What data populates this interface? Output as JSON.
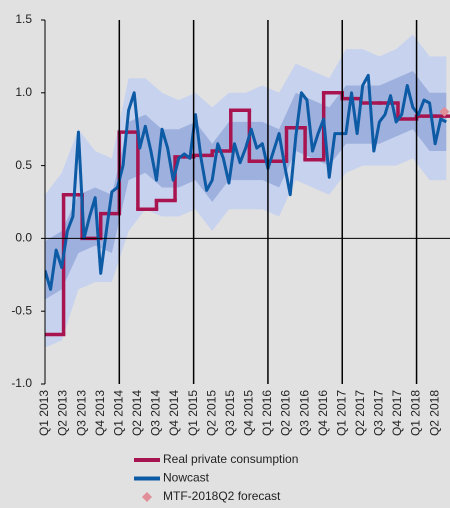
{
  "chart_data": {
    "type": "line",
    "xlim": [
      0,
      21.8
    ],
    "xticks": [
      {
        "value": 0,
        "label": "Q1 2013"
      },
      {
        "value": 1,
        "label": "Q2 2013"
      },
      {
        "value": 2,
        "label": "Q3 2013"
      },
      {
        "value": 3,
        "label": "Q4 2013"
      },
      {
        "value": 4,
        "label": "Q1 2014"
      },
      {
        "value": 5,
        "label": "Q2 2014"
      },
      {
        "value": 6,
        "label": "Q3 2014"
      },
      {
        "value": 7,
        "label": "Q4 2014"
      },
      {
        "value": 8,
        "label": "Q1 2015"
      },
      {
        "value": 9,
        "label": "Q2 2015"
      },
      {
        "value": 10,
        "label": "Q3 2015"
      },
      {
        "value": 11,
        "label": "Q4 2015"
      },
      {
        "value": 12,
        "label": "Q1 2016"
      },
      {
        "value": 13,
        "label": "Q2 2016"
      },
      {
        "value": 14,
        "label": "Q3 2016"
      },
      {
        "value": 15,
        "label": "Q4 2016"
      },
      {
        "value": 16,
        "label": "Q1 2017"
      },
      {
        "value": 17,
        "label": "Q2 2017"
      },
      {
        "value": 18,
        "label": "Q3 2017"
      },
      {
        "value": 19,
        "label": "Q4 2017"
      },
      {
        "value": 20,
        "label": "Q1 2018"
      },
      {
        "value": 21,
        "label": "Q2 2018"
      }
    ],
    "ylim": [
      -1,
      1.5
    ],
    "yticks": [
      {
        "value": -1,
        "label": "-1.0"
      },
      -0.5,
      {
        "value": 0,
        "label": "0.0"
      },
      0.5,
      {
        "value": 1,
        "label": "1.0"
      },
      1.5
    ],
    "bands": [
      {
        "color": "#c7d2ee",
        "x": [
          0,
          0.9,
          1.8,
          2.7,
          3.6,
          4.5,
          5.4,
          6.3,
          7.2,
          8.1,
          9,
          9.9,
          10.8,
          11.7,
          12.6,
          13.5,
          14.4,
          15.3,
          16.2,
          17.1,
          18,
          18.9,
          19.8,
          20.7,
          21.6
        ],
        "lower": [
          -0.75,
          -0.7,
          -0.35,
          -0.3,
          -0.3,
          0.05,
          0.2,
          0.15,
          0.15,
          0.2,
          0.05,
          0.2,
          0.2,
          0.2,
          0.15,
          0.4,
          0.35,
          0.3,
          0.45,
          0.5,
          0.5,
          0.5,
          0.55,
          0.4,
          0.4
        ],
        "upper": [
          0.3,
          0.45,
          0.75,
          0.6,
          0.55,
          1.1,
          1.1,
          1.0,
          0.95,
          1.0,
          0.9,
          1.0,
          1.0,
          1.05,
          1.0,
          1.2,
          1.15,
          1.1,
          1.3,
          1.3,
          1.25,
          1.3,
          1.4,
          1.25,
          1.25
        ]
      },
      {
        "color": "#9eb1de",
        "x": [
          0,
          0.9,
          1.8,
          2.7,
          3.6,
          4.5,
          5.4,
          6.3,
          7.2,
          8.1,
          9,
          9.9,
          10.8,
          11.7,
          12.6,
          13.5,
          14.4,
          15.3,
          16.2,
          17.1,
          18,
          18.9,
          19.8,
          20.7,
          21.6
        ],
        "lower": [
          -0.42,
          -0.35,
          -0.1,
          -0.05,
          -0.1,
          0.4,
          0.45,
          0.35,
          0.35,
          0.4,
          0.25,
          0.4,
          0.4,
          0.4,
          0.35,
          0.6,
          0.55,
          0.5,
          0.65,
          0.65,
          0.65,
          0.7,
          0.75,
          0.6,
          0.6
        ],
        "upper": [
          -0.02,
          0.05,
          0.3,
          0.35,
          0.3,
          0.8,
          0.85,
          0.75,
          0.75,
          0.8,
          0.65,
          0.8,
          0.8,
          0.8,
          0.75,
          1.0,
          0.95,
          0.9,
          1.05,
          1.05,
          1.05,
          1.1,
          1.15,
          1.0,
          1.0
        ]
      }
    ],
    "series": [
      {
        "name": "Real private consumption",
        "color": "#a8144f",
        "style": "step",
        "x": [
          0,
          1,
          2,
          3,
          4,
          5,
          6,
          7,
          8,
          9,
          10,
          11,
          12,
          13,
          14,
          15,
          16,
          17,
          18,
          19,
          20,
          21
        ],
        "values": [
          -0.66,
          0.3,
          0,
          0.17,
          0.73,
          0.2,
          0.26,
          0.56,
          0.57,
          0.6,
          0.88,
          0.53,
          0.53,
          0.76,
          0.54,
          1.0,
          0.96,
          0.93,
          0.93,
          0.82,
          0.84,
          0.84
        ]
      },
      {
        "name": "Nowcast",
        "color": "#0d5aa5",
        "style": "line",
        "x": [
          0,
          0.3,
          0.6,
          0.9,
          1.2,
          1.5,
          1.8,
          2.1,
          2.4,
          2.7,
          3,
          3.3,
          3.6,
          3.9,
          4.2,
          4.5,
          4.8,
          5.1,
          5.4,
          5.7,
          6,
          6.3,
          6.6,
          6.9,
          7.2,
          7.5,
          7.8,
          8.1,
          8.4,
          8.7,
          9,
          9.3,
          9.6,
          9.9,
          10.2,
          10.5,
          10.8,
          11.1,
          11.4,
          11.7,
          12,
          12.3,
          12.6,
          12.9,
          13.2,
          13.5,
          13.8,
          14.1,
          14.4,
          14.7,
          15,
          15.3,
          15.6,
          15.9,
          16.2,
          16.5,
          16.8,
          17.1,
          17.4,
          17.7,
          18,
          18.3,
          18.6,
          18.9,
          19.2,
          19.5,
          19.8,
          20.1,
          20.4,
          20.7,
          21,
          21.3,
          21.6
        ],
        "values": [
          -0.22,
          -0.35,
          -0.08,
          -0.2,
          0.05,
          0.15,
          0.73,
          0,
          0.15,
          0.28,
          -0.24,
          0.05,
          0.32,
          0.35,
          0.5,
          0.88,
          1.0,
          0.62,
          0.77,
          0.6,
          0.4,
          0.75,
          0.62,
          0.4,
          0.55,
          0.58,
          0.55,
          0.85,
          0.55,
          0.33,
          0.4,
          0.65,
          0.55,
          0.38,
          0.65,
          0.52,
          0.62,
          0.75,
          0.62,
          0.65,
          0.48,
          0.6,
          0.72,
          0.5,
          0.3,
          0.7,
          1.0,
          0.95,
          0.6,
          0.72,
          0.82,
          0.42,
          0.72,
          0.72,
          0.72,
          1.0,
          0.72,
          1.05,
          1.12,
          0.6,
          0.8,
          0.85,
          0.98,
          0.8,
          0.85,
          1.05,
          0.9,
          0.85,
          0.95,
          0.93,
          0.65,
          0.82,
          0.8
        ]
      },
      {
        "name": "MTF-2018Q2 forecast",
        "color": "#e08e98",
        "style": "diamond",
        "x": [
          21.5
        ],
        "values": [
          0.87
        ]
      }
    ]
  }
}
